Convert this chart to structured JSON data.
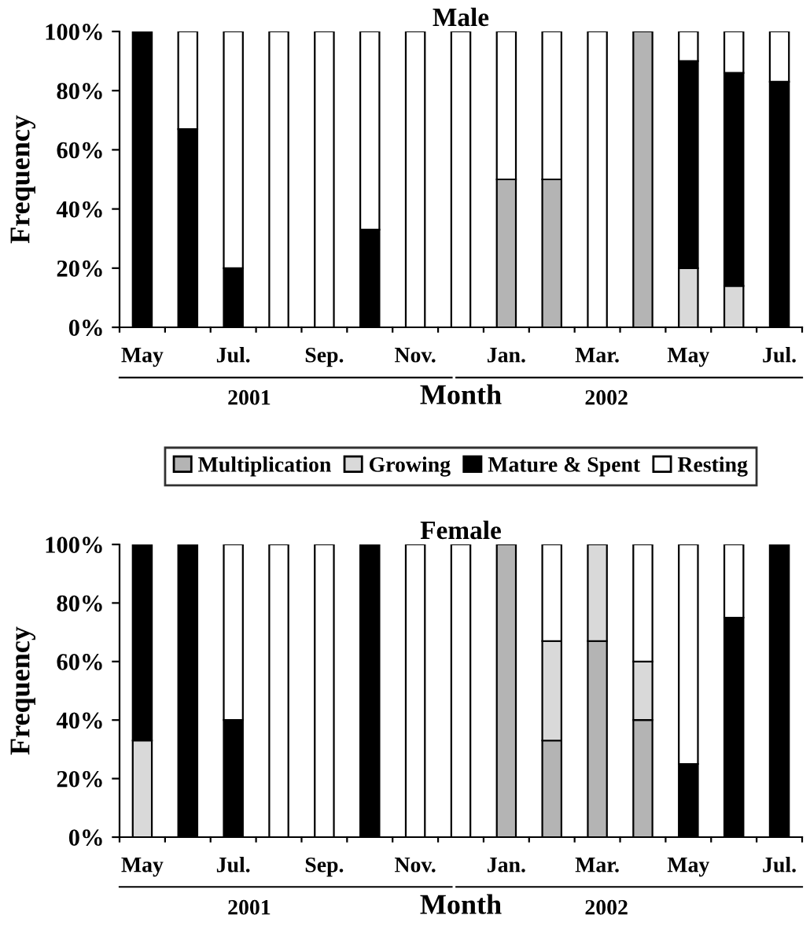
{
  "chart_data": [
    {
      "type": "bar",
      "stacked": true,
      "title": "Male",
      "xlabel": "Month",
      "ylabel": "Frequency",
      "legend": "bottom",
      "grid": false,
      "categories": [
        "May",
        null,
        "Jul.",
        null,
        "Sep.",
        null,
        "Nov.",
        null,
        "Jan.",
        null,
        "Mar.",
        null,
        "May",
        null,
        "Jul."
      ],
      "ylim": [
        0,
        100
      ],
      "yticks": [
        {
          "value": 0,
          "label": "0%"
        },
        {
          "value": 20,
          "label": "20%"
        },
        {
          "value": 40,
          "label": "40%"
        },
        {
          "value": 60,
          "label": "60%"
        },
        {
          "value": 80,
          "label": "80%"
        },
        {
          "value": 100,
          "label": "100%"
        }
      ],
      "annotations": [
        "2001",
        "2002"
      ],
      "series": [
        {
          "name": "Multiplication",
          "color": "#b4b4b4",
          "values": [
            0,
            0,
            0,
            0,
            0,
            0,
            0,
            0,
            50,
            50,
            0,
            100,
            0,
            0,
            0
          ]
        },
        {
          "name": "Growing",
          "color": "#d9d9d9",
          "values": [
            0,
            0,
            0,
            0,
            0,
            0,
            0,
            0,
            0,
            0,
            0,
            0,
            20,
            14,
            0
          ]
        },
        {
          "name": "Mature & Spent",
          "color": "#000000",
          "values": [
            100,
            67,
            20,
            0,
            0,
            33,
            0,
            0,
            0,
            0,
            0,
            0,
            70,
            72,
            83
          ]
        },
        {
          "name": "Resting",
          "color": "#ffffff",
          "values": [
            0,
            33,
            80,
            100,
            100,
            67,
            100,
            100,
            50,
            50,
            100,
            0,
            10,
            14,
            17
          ]
        }
      ]
    },
    {
      "type": "bar",
      "stacked": true,
      "title": "Female",
      "xlabel": "Month",
      "ylabel": "Frequency",
      "grid": false,
      "categories": [
        "May",
        null,
        "Jul.",
        null,
        "Sep.",
        null,
        "Nov.",
        null,
        "Jan.",
        null,
        "Mar.",
        null,
        "May",
        null,
        "Jul."
      ],
      "ylim": [
        0,
        100
      ],
      "yticks": [
        {
          "value": 0,
          "label": "0%"
        },
        {
          "value": 20,
          "label": "20%"
        },
        {
          "value": 40,
          "label": "40%"
        },
        {
          "value": 60,
          "label": "60%"
        },
        {
          "value": 80,
          "label": "80%"
        },
        {
          "value": 100,
          "label": "100%"
        }
      ],
      "annotations": [
        "2001",
        "2002"
      ],
      "series": [
        {
          "color": "#b4b4b4",
          "values": [
            0,
            0,
            0,
            0,
            0,
            0,
            0,
            0,
            100,
            33,
            67,
            40,
            0,
            0,
            0
          ]
        },
        {
          "color": "#d9d9d9",
          "values": [
            33,
            0,
            0,
            0,
            0,
            0,
            0,
            0,
            0,
            34,
            33,
            20,
            0,
            0,
            0
          ]
        },
        {
          "color": "#000000",
          "values": [
            67,
            100,
            40,
            0,
            0,
            100,
            0,
            0,
            0,
            0,
            0,
            0,
            25,
            75,
            100
          ]
        },
        {
          "color": "#ffffff",
          "values": [
            0,
            0,
            60,
            100,
            100,
            0,
            100,
            100,
            0,
            33,
            0,
            40,
            75,
            25,
            0
          ]
        }
      ]
    }
  ]
}
